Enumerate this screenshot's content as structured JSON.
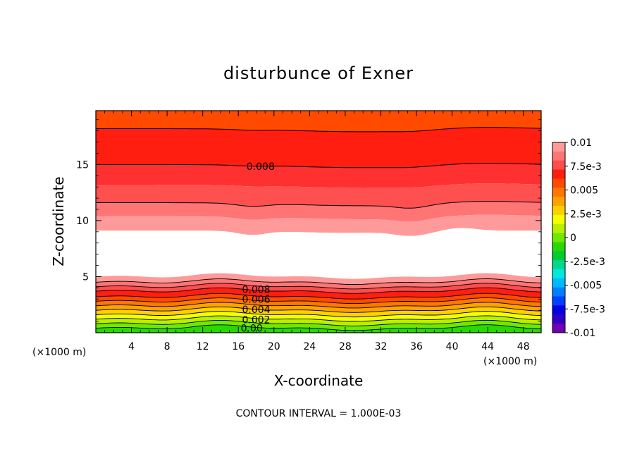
{
  "chart_data": {
    "type": "heatmap",
    "subtype": "filled-contour",
    "title": "disturbunce of Exner",
    "xlabel": "X-coordinate",
    "ylabel": "Z-coordinate",
    "x_unit_label": "(×1000 m)",
    "y_unit_label": "(×1000 m)",
    "xlim": [
      0,
      50
    ],
    "ylim": [
      0,
      19.8
    ],
    "x_ticks": [
      4,
      8,
      12,
      16,
      20,
      24,
      28,
      32,
      36,
      40,
      44,
      48
    ],
    "y_ticks": [
      5,
      10,
      15
    ],
    "footer": "CONTOUR INTERVAL = 1.000E-03",
    "contour_interval": 0.001,
    "colorbar": {
      "min": -0.01,
      "max": 0.01,
      "tick_labels": [
        "0.01",
        "7.5e-3",
        "0.005",
        "2.5e-3",
        "0",
        "-2.5e-3",
        "-0.005",
        "-7.5e-3",
        "-0.01"
      ],
      "tick_values": [
        0.01,
        0.0075,
        0.005,
        0.0025,
        0,
        -0.0025,
        -0.005,
        -0.0075,
        -0.01
      ],
      "colors_top_to_bottom": [
        "#ff9a9a",
        "#ff7474",
        "#ff4c4c",
        "#ff1e10",
        "#ff4a00",
        "#ff7600",
        "#ffa200",
        "#ffd000",
        "#f4ff00",
        "#b8f000",
        "#70e800",
        "#28d800",
        "#00cc30",
        "#00d890",
        "#00e8e0",
        "#00b8ff",
        "#0080ff",
        "#0040ff",
        "#0000e8",
        "#3000c8",
        "#7000b0"
      ]
    },
    "contour_labels": [
      {
        "text": "0.008",
        "x": 18.5,
        "y": 15.0
      },
      {
        "text": "0.008",
        "x": 18.0,
        "y": 3.8
      },
      {
        "text": "0.006",
        "x": 18.0,
        "y": 2.9
      },
      {
        "text": "0.004",
        "x": 18.0,
        "y": 2.0
      },
      {
        "text": "0.002",
        "x": 18.0,
        "y": 1.1
      },
      {
        "text": "0.00",
        "x": 17.5,
        "y": 0.3
      }
    ],
    "upper_region_bands": [
      {
        "z_top": 19.8,
        "z_bottom": 18.2,
        "value": 0.0065,
        "color": "#ff4a00"
      },
      {
        "z_top": 18.2,
        "z_bottom": 15.0,
        "value": 0.0085,
        "color": "#ff1e10"
      },
      {
        "z_top": 15.0,
        "z_bottom": 13.2,
        "value": 0.0082,
        "color": "#ff3030"
      },
      {
        "z_top": 13.2,
        "z_bottom": 11.6,
        "value": 0.0088,
        "color": "#ff5050"
      },
      {
        "z_top": 11.6,
        "z_bottom": 10.4,
        "value": 0.0092,
        "color": "#ff7474"
      },
      {
        "z_top": 10.4,
        "z_bottom": 9.1,
        "value": 0.0096,
        "color": "#ff9a9a"
      }
    ],
    "blank_region": {
      "z_top": 9.1,
      "z_bottom": 5.0,
      "note": "values above 0.01"
    },
    "lower_region_bands": [
      {
        "z_top": 5.0,
        "z_bottom": 4.5,
        "value": 0.0096,
        "color": "#ff9a9a"
      },
      {
        "z_top": 4.5,
        "z_bottom": 4.1,
        "value": 0.0092,
        "color": "#ff7474"
      },
      {
        "z_top": 4.1,
        "z_bottom": 3.7,
        "value": 0.0088,
        "color": "#ff4c4c"
      },
      {
        "z_top": 3.7,
        "z_bottom": 3.2,
        "value": 0.0082,
        "color": "#ff1e10"
      },
      {
        "z_top": 3.2,
        "z_bottom": 2.8,
        "value": 0.0068,
        "color": "#ff4a00"
      },
      {
        "z_top": 2.8,
        "z_bottom": 2.4,
        "value": 0.0058,
        "color": "#ff7600"
      },
      {
        "z_top": 2.4,
        "z_bottom": 2.0,
        "value": 0.0048,
        "color": "#ffa200"
      },
      {
        "z_top": 2.0,
        "z_bottom": 1.6,
        "value": 0.0038,
        "color": "#ffd000"
      },
      {
        "z_top": 1.6,
        "z_bottom": 1.2,
        "value": 0.0028,
        "color": "#f4ff00"
      },
      {
        "z_top": 1.2,
        "z_bottom": 0.8,
        "value": 0.0018,
        "color": "#b8f000"
      },
      {
        "z_top": 0.8,
        "z_bottom": 0.4,
        "value": 0.0008,
        "color": "#70e800"
      },
      {
        "z_top": 0.4,
        "z_bottom": 0.0,
        "value": -0.0002,
        "color": "#28d800"
      }
    ],
    "upper_contour_lines": [
      {
        "value": 0.007,
        "z": 18.2
      },
      {
        "value": 0.008,
        "z": 15.0
      },
      {
        "value": 0.009,
        "z": 11.6
      }
    ],
    "lower_contour_lines": [
      0.0,
      0.001,
      0.002,
      0.003,
      0.004,
      0.005,
      0.006,
      0.007,
      0.008,
      0.009
    ]
  }
}
